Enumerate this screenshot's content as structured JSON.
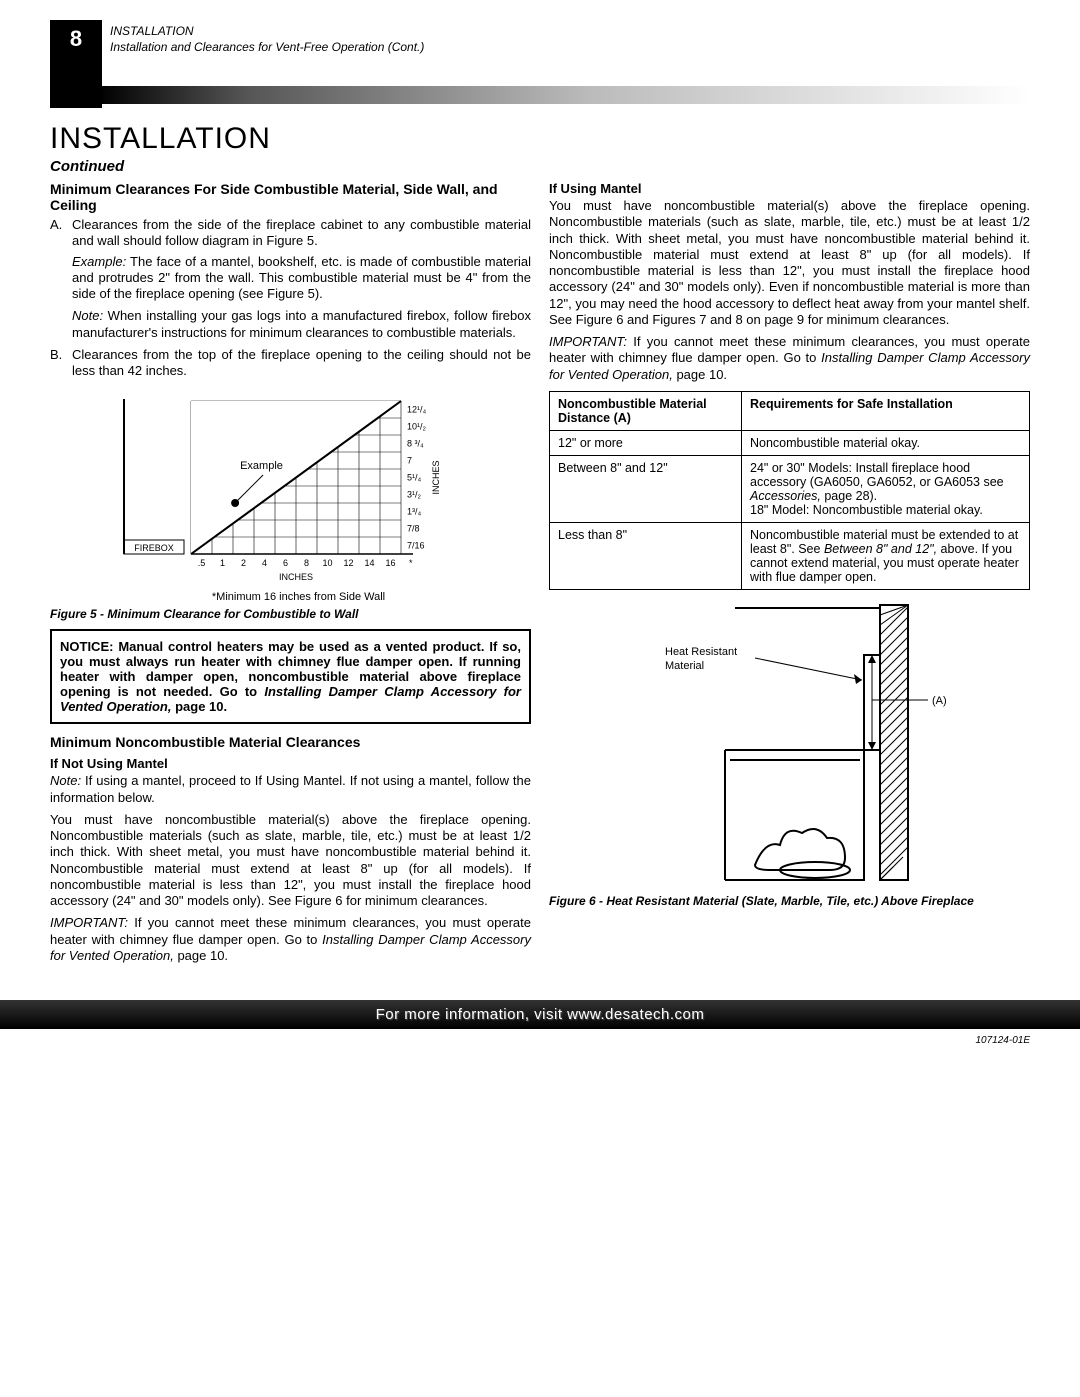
{
  "header": {
    "page_number": "8",
    "label1": "INSTALLATION",
    "label2": "Installation and Clearances for Vent-Free Operation (Cont.)"
  },
  "title": "INSTALLATION",
  "continued": "Continued",
  "left": {
    "h1": "Minimum Clearances For Side Combustible Material, Side Wall, and Ceiling",
    "a_marker": "A.",
    "a_text": "Clearances from the side of the fireplace cabinet to any combustible material and wall should follow diagram in Figure 5.",
    "example_label": "Example:",
    "example_text": " The face of a mantel, bookshelf, etc. is made of combustible material and protrudes 2\" from the wall. This combustible material must be 4\" from the side of the fireplace opening (see Figure 5).",
    "note_label": "Note:",
    "note_text": " When installing your gas logs into a manufactured firebox, follow firebox manufacturer's instructions for minimum clearances to combustible materials.",
    "b_marker": "B.",
    "b_text": "Clearances from the top of the fireplace opening to the ceiling should not be less than 42 inches.",
    "chart": {
      "example_label": "Example",
      "firebox_label": "FIREBOX",
      "x_ticks": [
        ".5",
        "1",
        "2",
        "4",
        "6",
        "8",
        "10",
        "12",
        "14",
        "16"
      ],
      "x_star": "*",
      "y_ticks": [
        "12¹/₄",
        "10¹/₂",
        "8 ³/₄",
        "7",
        "5¹/₄",
        "3¹/₂",
        "1³/₄",
        "7/8",
        "7/16"
      ],
      "x_axis_label": "INCHES",
      "y_axis_label": "INCHES",
      "min_note": "*Minimum 16 inches from Side Wall",
      "caption": "Figure 5 - Minimum Clearance for Combustible to Wall",
      "line_color": "#000000",
      "grid_color": "#000000",
      "bg": "#ffffff"
    },
    "notice": "NOTICE: Manual control heaters may be used as a vented product. If so, you must always run heater with chimney flue damper open. If running heater with damper open, noncombustible material above fireplace opening is not needed. Go to ",
    "notice_em": "Installing Damper Clamp Accessory for Vented Operation,",
    "notice_tail": " page 10.",
    "h2": "Minimum Noncombustible Material Clearances",
    "h3": "If Not Using Mantel",
    "note2_label": "Note:",
    "note2_text": " If using a mantel, proceed to If Using Mantel. If not using a mantel, follow the information below.",
    "p1": "You must have noncombustible material(s) above the fireplace opening. Noncombustible materials (such as slate, marble, tile, etc.) must be at least 1/2 inch thick. With sheet metal, you must have noncombustible material behind it. Noncombustible material must extend at least 8\" up (for all models). If noncombustible material is less than 12\", you must install the fireplace hood accessory (24\" and 30\" models only). See Figure 6 for minimum clearances.",
    "imp_label": "IMPORTANT:",
    "imp_text": " If you cannot meet these minimum clearances, you must operate heater with chimney flue damper open. Go to ",
    "imp_em": "Installing Damper Clamp Accessory for Vented Operation,",
    "imp_tail": " page 10."
  },
  "right": {
    "h1": "If Using Mantel",
    "p1": "You must have noncombustible material(s) above the fireplace opening. Noncombustible materials (such as slate, marble, tile, etc.) must be at least 1/2 inch thick. With sheet metal, you must have noncombustible material behind it. Noncombustible material must extend at least 8\" up (for all models). If noncombustible material is less than 12\", you must install the fireplace hood accessory (24\" and 30\" models only). Even if noncombustible material is more than 12\", you may need the hood accessory to deflect heat away from your mantel shelf. See Figure 6 and Figures 7 and 8 on page 9 for minimum clearances.",
    "imp_label": "IMPORTANT:",
    "imp_text": " If you cannot meet these minimum clearances, you must operate heater with chimney flue damper open. Go to ",
    "imp_em": "Installing Damper Clamp Accessory for Vented Operation,",
    "imp_tail": " page 10.",
    "table": {
      "col1": "Noncombustible Material Distance (A)",
      "col2": "Requirements for Safe Installation",
      "rows": [
        {
          "a": "12\" or more",
          "b": "Noncombustible material okay."
        },
        {
          "a": "Between 8\" and 12\"",
          "b_pre": "24\" or 30\" Models: Install fireplace hood accessory (GA6050, GA6052, or GA6053 see ",
          "b_em": "Accessories,",
          "b_post": " page 28).\n18\" Model: Noncombustible material okay."
        },
        {
          "a": "Less than 8\"",
          "b_pre": "Noncombustible material must be extended to at least 8\". See ",
          "b_em": "Between 8\" and 12\",",
          "b_post": " above. If you cannot extend material, you must operate heater with flue damper open."
        }
      ]
    },
    "fig6": {
      "label_heat": "Heat Resistant Material",
      "label_a": "(A)",
      "caption": "Figure 6 - Heat Resistant Material (Slate, Marble, Tile, etc.) Above Fireplace"
    }
  },
  "footer": "For more information, visit www.desatech.com",
  "docnum": "107124-01E"
}
